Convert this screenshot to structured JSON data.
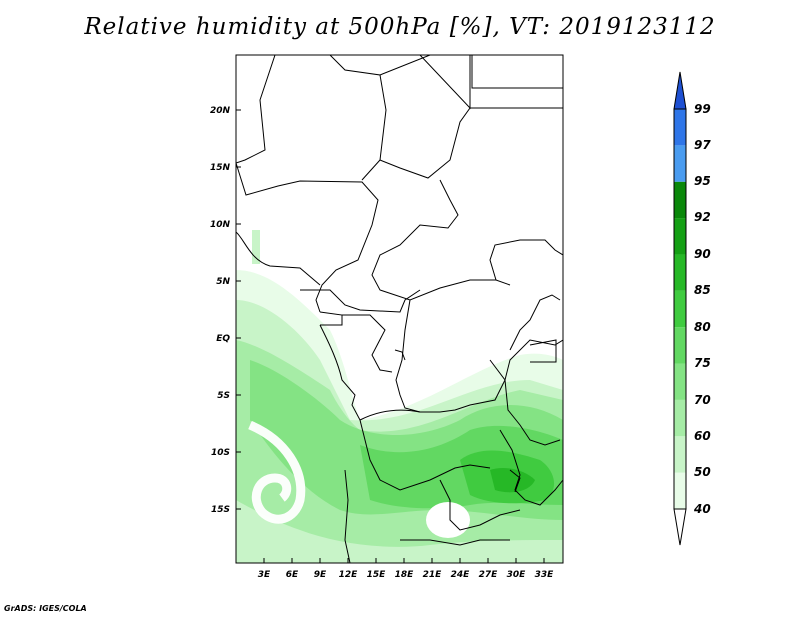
{
  "title": "Relative humidity at 500hPa [%], VT: 2019123112",
  "footer": "GrADS: IGES/COLA",
  "map": {
    "lat_ticks": [
      "20N",
      "15N",
      "10N",
      "5N",
      "EQ",
      "5S",
      "10S",
      "15S"
    ],
    "lon_ticks": [
      "3E",
      "6E",
      "9E",
      "12E",
      "15E",
      "18E",
      "21E",
      "24E",
      "27E",
      "30E",
      "33E"
    ]
  },
  "colorbar": {
    "levels": [
      "40",
      "50",
      "60",
      "70",
      "75",
      "80",
      "85",
      "90",
      "92",
      "95",
      "97",
      "99"
    ],
    "colors": [
      "#ffffff",
      "#e8fce8",
      "#c8f4c8",
      "#a6eca6",
      "#84e384",
      "#62d862",
      "#40cb40",
      "#26b826",
      "#14a014",
      "#0a880a",
      "#4a9cf0",
      "#2f76e8",
      "#1e50d2"
    ]
  }
}
